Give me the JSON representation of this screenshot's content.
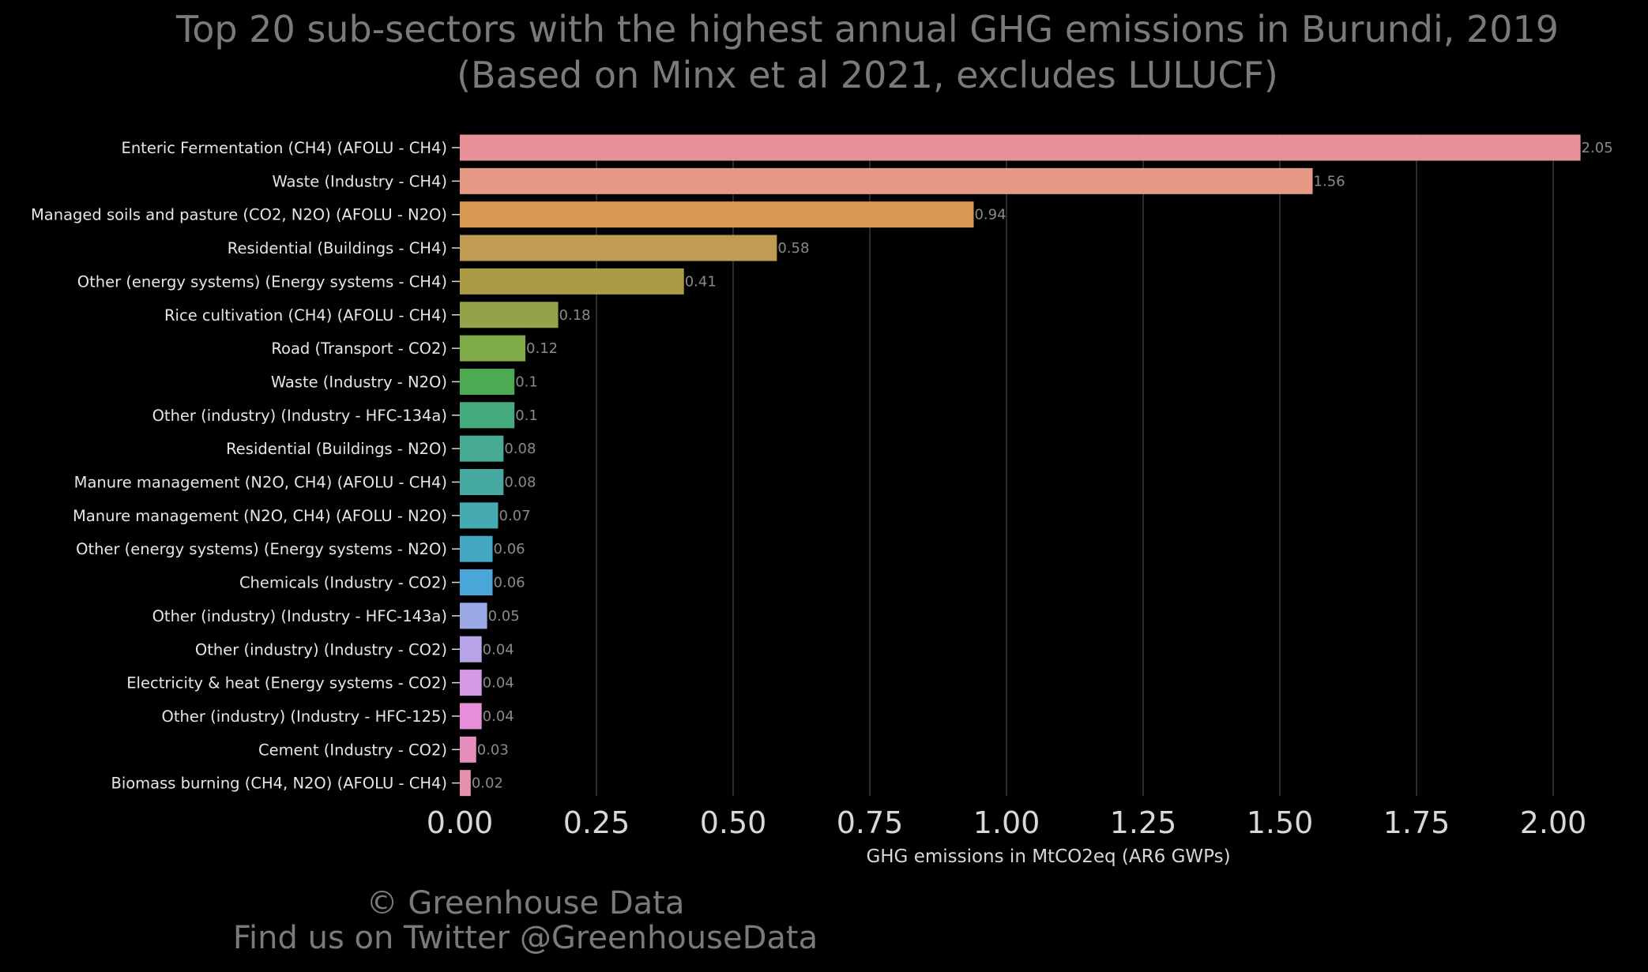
{
  "title": "Top 20 sub-sectors with the highest annual GHG emissions in Burundi, 2019",
  "subtitle": "(Based on Minx et al 2021, excludes LULUCF)",
  "footer": {
    "line1": "© Greenhouse Data",
    "line2": "Find us on Twitter @GreenhouseData"
  },
  "chart_data": {
    "type": "bar",
    "orientation": "horizontal",
    "xlabel": "GHG emissions in MtCO2eq (AR6 GWPs)",
    "xlim": [
      0,
      2.05
    ],
    "xticks": [
      "0.00",
      "0.25",
      "0.50",
      "0.75",
      "1.00",
      "1.25",
      "1.50",
      "1.75",
      "2.00"
    ],
    "grid": "vertical",
    "categories": [
      "Enteric Fermentation (CH4) (AFOLU - CH4)",
      "Waste (Industry - CH4)",
      "Managed soils and pasture (CO2, N2O) (AFOLU - N2O)",
      "Residential (Buildings - CH4)",
      "Other (energy systems) (Energy systems - CH4)",
      "Rice cultivation (CH4) (AFOLU - CH4)",
      "Road (Transport - CO2)",
      "Waste (Industry - N2O)",
      "Other (industry) (Industry - HFC-134a)",
      "Residential (Buildings - N2O)",
      "Manure management (N2O, CH4) (AFOLU - CH4)",
      "Manure management (N2O, CH4) (AFOLU - N2O)",
      "Other (energy systems) (Energy systems - N2O)",
      "Chemicals (Industry - CO2)",
      "Other (industry) (Industry - HFC-143a)",
      "Other (industry) (Industry - CO2)",
      "Electricity & heat (Energy systems - CO2)",
      "Other (industry) (Industry - HFC-125)",
      "Cement (Industry - CO2)",
      "Biomass burning (CH4, N2O) (AFOLU - CH4)"
    ],
    "values": [
      2.05,
      1.56,
      0.94,
      0.58,
      0.41,
      0.18,
      0.12,
      0.1,
      0.1,
      0.08,
      0.08,
      0.07,
      0.06,
      0.06,
      0.05,
      0.04,
      0.04,
      0.04,
      0.03,
      0.02
    ],
    "value_labels": [
      "2.05",
      "1.56",
      "0.94",
      "0.58",
      "0.41",
      "0.18",
      "0.12",
      "0.1",
      "0.1",
      "0.08",
      "0.08",
      "0.07",
      "0.06",
      "0.06",
      "0.05",
      "0.04",
      "0.04",
      "0.04",
      "0.03",
      "0.02"
    ],
    "colors": [
      "#e6909a",
      "#e69a85",
      "#d89a52",
      "#c09b52",
      "#aa9c45",
      "#96a24a",
      "#7faa48",
      "#4caa52",
      "#47ab80",
      "#47ab94",
      "#45a9a0",
      "#46aab2",
      "#45a8c2",
      "#4aa6d8",
      "#9aa8e6",
      "#b7a4e6",
      "#d49ae6",
      "#e68fd8",
      "#e68fbf",
      "#e690b0"
    ]
  }
}
